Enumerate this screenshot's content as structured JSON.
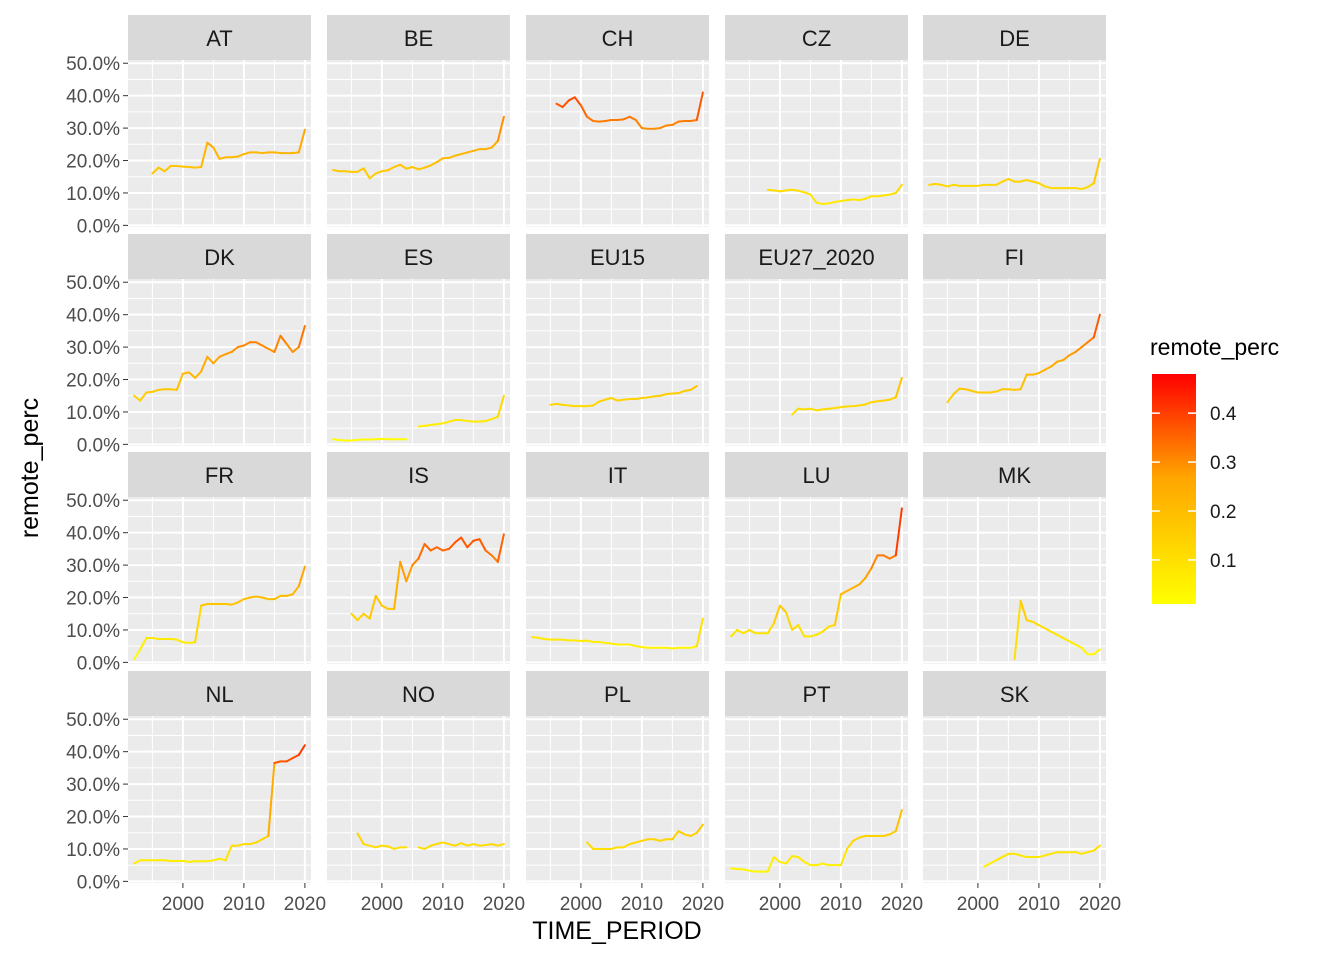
{
  "chart_data": {
    "type": "line",
    "facet_by": "country",
    "xlabel": "TIME_PERIOD",
    "ylabel": "remote_perc",
    "xlim": [
      1991,
      2021
    ],
    "ylim": [
      -0.005,
      0.51
    ],
    "x_ticks": [
      2000,
      2010,
      2020
    ],
    "y_ticks": [
      0,
      0.1,
      0.2,
      0.3,
      0.4,
      0.5
    ],
    "y_tick_labels": [
      "0.0%",
      "10.0%",
      "20.0%",
      "30.0%",
      "40.0%",
      "50.0%"
    ],
    "grid": true,
    "legend": {
      "title": "remote_perc",
      "position": "right",
      "type": "colorbar",
      "range": [
        0.01,
        0.48
      ],
      "ticks": [
        0.1,
        0.2,
        0.3,
        0.4
      ],
      "tick_labels": [
        "0.1",
        "0.2",
        "0.3",
        "0.4"
      ],
      "colors": [
        "#FFFF00",
        "#FF0000"
      ]
    },
    "panels": [
      {
        "name": "AT",
        "x": [
          1995,
          1996,
          1997,
          1998,
          1999,
          2000,
          2001,
          2002,
          2003,
          2004,
          2005,
          2006,
          2007,
          2008,
          2009,
          2010,
          2011,
          2012,
          2013,
          2014,
          2015,
          2016,
          2017,
          2018,
          2019,
          2020
        ],
        "y": [
          0.16,
          0.178,
          0.167,
          0.183,
          0.183,
          0.181,
          0.18,
          0.178,
          0.18,
          0.255,
          0.24,
          0.205,
          0.21,
          0.21,
          0.212,
          0.22,
          0.225,
          0.225,
          0.223,
          0.225,
          0.225,
          0.223,
          0.223,
          0.223,
          0.225,
          0.295
        ]
      },
      {
        "name": "BE",
        "x": [
          1992,
          1993,
          1994,
          1995,
          1996,
          1997,
          1998,
          1999,
          2000,
          2001,
          2002,
          2003,
          2004,
          2005,
          2006,
          2007,
          2008,
          2009,
          2010,
          2011,
          2012,
          2013,
          2014,
          2015,
          2016,
          2017,
          2018,
          2019,
          2020
        ],
        "y": [
          0.171,
          0.167,
          0.167,
          0.165,
          0.165,
          0.176,
          0.145,
          0.16,
          0.167,
          0.17,
          0.18,
          0.187,
          0.175,
          0.18,
          0.173,
          0.178,
          0.185,
          0.195,
          0.207,
          0.208,
          0.215,
          0.22,
          0.225,
          0.23,
          0.235,
          0.235,
          0.24,
          0.26,
          0.335
        ]
      },
      {
        "name": "CH",
        "x": [
          1996,
          1997,
          1998,
          1999,
          2000,
          2001,
          2002,
          2003,
          2004,
          2005,
          2006,
          2007,
          2008,
          2009,
          2010,
          2011,
          2012,
          2013,
          2014,
          2015,
          2016,
          2017,
          2018,
          2019,
          2020
        ],
        "y": [
          0.375,
          0.365,
          0.385,
          0.395,
          0.37,
          0.335,
          0.322,
          0.32,
          0.322,
          0.325,
          0.325,
          0.327,
          0.335,
          0.325,
          0.3,
          0.298,
          0.298,
          0.3,
          0.308,
          0.31,
          0.32,
          0.322,
          0.322,
          0.325,
          0.41
        ]
      },
      {
        "name": "CZ",
        "x": [
          1998,
          1999,
          2000,
          2001,
          2002,
          2003,
          2004,
          2005,
          2006,
          2007,
          2008,
          2009,
          2010,
          2011,
          2012,
          2013,
          2014,
          2015,
          2016,
          2017,
          2018,
          2019,
          2020
        ],
        "y": [
          0.11,
          0.108,
          0.105,
          0.108,
          0.11,
          0.107,
          0.102,
          0.095,
          0.07,
          0.066,
          0.068,
          0.072,
          0.075,
          0.078,
          0.08,
          0.078,
          0.082,
          0.09,
          0.09,
          0.092,
          0.095,
          0.1,
          0.125
        ]
      },
      {
        "name": "DE",
        "x": [
          1992,
          1993,
          1994,
          1995,
          1996,
          1997,
          1998,
          1999,
          2000,
          2001,
          2002,
          2003,
          2004,
          2005,
          2006,
          2007,
          2008,
          2009,
          2010,
          2011,
          2012,
          2013,
          2014,
          2015,
          2016,
          2017,
          2018,
          2019,
          2020
        ],
        "y": [
          0.125,
          0.128,
          0.125,
          0.12,
          0.125,
          0.122,
          0.122,
          0.122,
          0.122,
          0.125,
          0.125,
          0.125,
          0.135,
          0.143,
          0.135,
          0.135,
          0.14,
          0.135,
          0.13,
          0.12,
          0.115,
          0.115,
          0.115,
          0.115,
          0.115,
          0.112,
          0.118,
          0.13,
          0.205
        ]
      },
      {
        "name": "DK",
        "x": [
          1992,
          1993,
          1994,
          1995,
          1996,
          1997,
          1998,
          1999,
          2000,
          2001,
          2002,
          2003,
          2004,
          2005,
          2006,
          2007,
          2008,
          2009,
          2010,
          2011,
          2012,
          2013,
          2014,
          2015,
          2016,
          2017,
          2018,
          2019,
          2020
        ],
        "y": [
          0.15,
          0.135,
          0.16,
          0.162,
          0.168,
          0.17,
          0.17,
          0.168,
          0.218,
          0.222,
          0.205,
          0.225,
          0.27,
          0.25,
          0.27,
          0.278,
          0.285,
          0.3,
          0.305,
          0.315,
          0.315,
          0.305,
          0.295,
          0.285,
          0.335,
          0.31,
          0.285,
          0.3,
          0.365
        ]
      },
      {
        "name": "ES",
        "x": [
          1992,
          1993,
          1994,
          1995,
          1996,
          1997,
          1998,
          1999,
          2000,
          2001,
          2002,
          2003,
          2004,
          null,
          2006,
          2007,
          2008,
          2009,
          2010,
          2011,
          2012,
          2013,
          2014,
          2015,
          2016,
          2017,
          2018,
          2019,
          2020
        ],
        "y": [
          0.016,
          0.013,
          0.012,
          0.012,
          0.014,
          0.015,
          0.015,
          0.016,
          0.017,
          0.016,
          0.016,
          0.016,
          0.016,
          null,
          0.055,
          0.057,
          0.06,
          0.062,
          0.065,
          0.07,
          0.075,
          0.075,
          0.072,
          0.07,
          0.07,
          0.072,
          0.078,
          0.085,
          0.15
        ]
      },
      {
        "name": "EU15",
        "x": [
          1995,
          1996,
          1997,
          1998,
          1999,
          2000,
          2001,
          2002,
          2003,
          2004,
          2005,
          2006,
          2007,
          2008,
          2009,
          2010,
          2011,
          2012,
          2013,
          2014,
          2015,
          2016,
          2017,
          2018,
          2019
        ],
        "y": [
          0.122,
          0.125,
          0.122,
          0.12,
          0.118,
          0.118,
          0.118,
          0.12,
          0.132,
          0.138,
          0.143,
          0.135,
          0.138,
          0.14,
          0.14,
          0.143,
          0.145,
          0.148,
          0.15,
          0.155,
          0.157,
          0.158,
          0.165,
          0.168,
          0.18
        ]
      },
      {
        "name": "EU27_2020",
        "x": [
          2002,
          2003,
          2004,
          2005,
          2006,
          2007,
          2008,
          2009,
          2010,
          2011,
          2012,
          2013,
          2014,
          2015,
          2016,
          2017,
          2018,
          2019,
          2020
        ],
        "y": [
          0.092,
          0.11,
          0.108,
          0.11,
          0.105,
          0.108,
          0.11,
          0.112,
          0.115,
          0.117,
          0.118,
          0.12,
          0.123,
          0.13,
          0.133,
          0.135,
          0.138,
          0.145,
          0.205
        ]
      },
      {
        "name": "FI",
        "x": [
          1995,
          1996,
          1997,
          1998,
          1999,
          2000,
          2001,
          2002,
          2003,
          2004,
          2005,
          2006,
          2007,
          2008,
          2009,
          2010,
          2011,
          2012,
          2013,
          2014,
          2015,
          2016,
          2017,
          2018,
          2019,
          2020
        ],
        "y": [
          0.13,
          0.155,
          0.172,
          0.17,
          0.165,
          0.16,
          0.16,
          0.16,
          0.163,
          0.17,
          0.17,
          0.168,
          0.17,
          0.215,
          0.215,
          0.22,
          0.23,
          0.24,
          0.255,
          0.26,
          0.275,
          0.285,
          0.3,
          0.315,
          0.33,
          0.4
        ]
      },
      {
        "name": "FR",
        "x": [
          1992,
          1993,
          1994,
          1995,
          1996,
          1997,
          1998,
          1999,
          2000,
          2001,
          2002,
          2003,
          2004,
          2005,
          2006,
          2007,
          2008,
          2009,
          2010,
          2011,
          2012,
          2013,
          2014,
          2015,
          2016,
          2017,
          2018,
          2019,
          2020
        ],
        "y": [
          0.01,
          0.04,
          0.075,
          0.075,
          0.072,
          0.072,
          0.072,
          0.07,
          0.062,
          0.06,
          0.062,
          0.175,
          0.18,
          0.18,
          0.18,
          0.18,
          0.178,
          0.185,
          0.195,
          0.2,
          0.203,
          0.2,
          0.195,
          0.195,
          0.205,
          0.205,
          0.21,
          0.235,
          0.295
        ]
      },
      {
        "name": "IS",
        "x": [
          1995,
          1996,
          1997,
          1998,
          1999,
          2000,
          2001,
          2002,
          2003,
          2004,
          2005,
          2006,
          2007,
          2008,
          2009,
          2010,
          2011,
          2012,
          2013,
          2014,
          2015,
          2016,
          2017,
          2018,
          2019,
          2020
        ],
        "y": [
          0.15,
          0.13,
          0.15,
          0.135,
          0.205,
          0.175,
          0.165,
          0.165,
          0.31,
          0.25,
          0.3,
          0.32,
          0.365,
          0.345,
          0.355,
          0.345,
          0.35,
          0.37,
          0.385,
          0.355,
          0.375,
          0.38,
          0.345,
          0.33,
          0.31,
          0.395
        ]
      },
      {
        "name": "IT",
        "x": [
          1992,
          1993,
          1994,
          1995,
          1996,
          1997,
          1998,
          1999,
          2000,
          2001,
          2002,
          2003,
          2004,
          2005,
          2006,
          2007,
          2008,
          2009,
          2010,
          2011,
          2012,
          2013,
          2014,
          2015,
          2016,
          2017,
          2018,
          2019,
          2020
        ],
        "y": [
          0.078,
          0.076,
          0.072,
          0.07,
          0.07,
          0.07,
          0.068,
          0.068,
          0.066,
          0.067,
          0.063,
          0.063,
          0.06,
          0.058,
          0.055,
          0.055,
          0.055,
          0.05,
          0.047,
          0.045,
          0.045,
          0.045,
          0.045,
          0.043,
          0.045,
          0.045,
          0.045,
          0.05,
          0.135
        ]
      },
      {
        "name": "LU",
        "x": [
          1992,
          1993,
          1994,
          1995,
          1996,
          1997,
          1998,
          1999,
          2000,
          2001,
          2002,
          2003,
          2004,
          2005,
          2006,
          2007,
          2008,
          2009,
          2010,
          2011,
          2012,
          2013,
          2014,
          2015,
          2016,
          2017,
          2018,
          2019,
          2020
        ],
        "y": [
          0.08,
          0.1,
          0.09,
          0.1,
          0.09,
          0.09,
          0.09,
          0.12,
          0.175,
          0.155,
          0.1,
          0.115,
          0.08,
          0.08,
          0.085,
          0.095,
          0.11,
          0.115,
          0.21,
          0.22,
          0.23,
          0.24,
          0.26,
          0.29,
          0.33,
          0.33,
          0.32,
          0.33,
          0.475
        ]
      },
      {
        "name": "MK",
        "x": [
          2006,
          2007,
          2008,
          2009,
          2010,
          2011,
          2012,
          2013,
          2014,
          2015,
          2016,
          2017,
          2018,
          2019,
          2020
        ],
        "y": [
          0.01,
          0.19,
          0.13,
          0.125,
          0.115,
          0.105,
          0.095,
          0.085,
          0.075,
          0.065,
          0.055,
          0.045,
          0.025,
          0.025,
          0.04
        ]
      },
      {
        "name": "NL",
        "x": [
          1992,
          1993,
          1994,
          1995,
          1996,
          1997,
          1998,
          1999,
          2000,
          2001,
          2002,
          2003,
          2004,
          2005,
          2006,
          2007,
          2008,
          2009,
          2010,
          2011,
          2012,
          2013,
          2014,
          2015,
          2016,
          2017,
          2018,
          2019,
          2020
        ],
        "y": [
          0.055,
          0.065,
          0.065,
          0.065,
          0.065,
          0.065,
          0.063,
          0.063,
          0.063,
          0.06,
          0.062,
          0.062,
          0.062,
          0.065,
          0.07,
          0.065,
          0.11,
          0.11,
          0.115,
          0.115,
          0.12,
          0.13,
          0.14,
          0.365,
          0.37,
          0.37,
          0.38,
          0.39,
          0.42
        ]
      },
      {
        "name": "NO",
        "x": [
          1996,
          1997,
          1998,
          1999,
          2000,
          2001,
          2002,
          2003,
          2004,
          null,
          2006,
          2007,
          2008,
          2009,
          2010,
          2011,
          2012,
          2013,
          2014,
          2015,
          2016,
          2017,
          2018,
          2019,
          2020
        ],
        "y": [
          0.148,
          0.115,
          0.11,
          0.105,
          0.11,
          0.108,
          0.1,
          0.105,
          0.105,
          null,
          0.105,
          0.1,
          0.11,
          0.115,
          0.12,
          0.115,
          0.11,
          0.118,
          0.11,
          0.115,
          0.11,
          0.112,
          0.115,
          0.11,
          0.115
        ]
      },
      {
        "name": "PL",
        "x": [
          2001,
          2002,
          2003,
          2004,
          2005,
          2006,
          2007,
          2008,
          2009,
          2010,
          2011,
          2012,
          2013,
          2014,
          2015,
          2016,
          2017,
          2018,
          2019,
          2020
        ],
        "y": [
          0.12,
          0.1,
          0.1,
          0.1,
          0.1,
          0.105,
          0.105,
          0.115,
          0.12,
          0.125,
          0.13,
          0.13,
          0.125,
          0.13,
          0.13,
          0.155,
          0.145,
          0.14,
          0.15,
          0.175
        ]
      },
      {
        "name": "PT",
        "x": [
          1992,
          1993,
          1994,
          1995,
          1996,
          1997,
          1998,
          1999,
          2000,
          2001,
          2002,
          2003,
          2004,
          2005,
          2006,
          2007,
          2008,
          2009,
          2010,
          2011,
          2012,
          2013,
          2014,
          2015,
          2016,
          2017,
          2018,
          2019,
          2020
        ],
        "y": [
          0.04,
          0.038,
          0.037,
          0.033,
          0.03,
          0.03,
          0.03,
          0.075,
          0.06,
          0.055,
          0.078,
          0.075,
          0.06,
          0.05,
          0.05,
          0.055,
          0.05,
          0.05,
          0.05,
          0.1,
          0.125,
          0.135,
          0.14,
          0.14,
          0.14,
          0.14,
          0.145,
          0.155,
          0.22
        ]
      },
      {
        "name": "SK",
        "x": [
          2001,
          2002,
          2003,
          2004,
          2005,
          2006,
          2007,
          2008,
          2009,
          2010,
          2011,
          2012,
          2013,
          2014,
          2015,
          2016,
          2017,
          2018,
          2019,
          2020
        ],
        "y": [
          0.045,
          0.055,
          0.065,
          0.075,
          0.085,
          0.085,
          0.08,
          0.075,
          0.075,
          0.075,
          0.08,
          0.085,
          0.09,
          0.09,
          0.09,
          0.09,
          0.085,
          0.09,
          0.095,
          0.11
        ]
      }
    ]
  }
}
